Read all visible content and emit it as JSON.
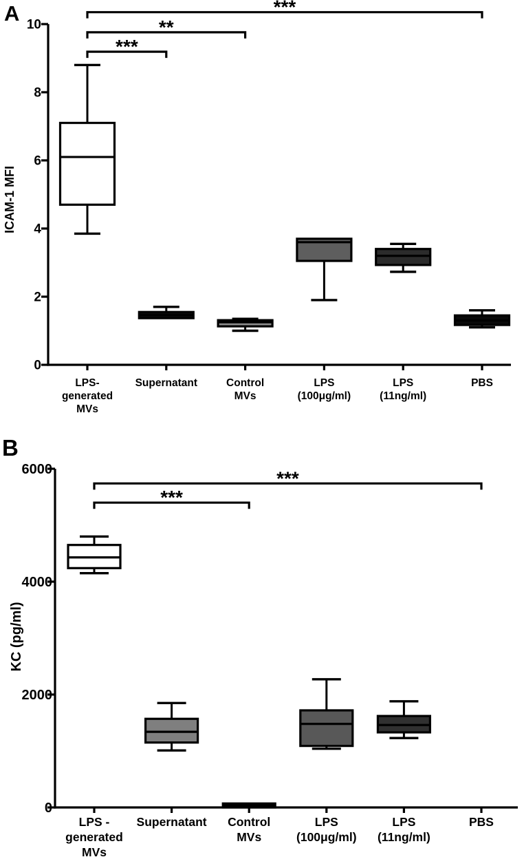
{
  "figure": {
    "background": "#ffffff",
    "ink": "#000000",
    "description": "Two-panel box plot figure"
  },
  "chart_data": [
    {
      "type": "box",
      "panel_label": "A",
      "ylabel": "ICAM-1 MFI",
      "xlabel": "",
      "ylim": [
        0,
        10
      ],
      "ytick_values": [
        0,
        2,
        4,
        6,
        8,
        10
      ],
      "ytick_labels": [
        "0",
        "2",
        "4",
        "6",
        "8",
        "10"
      ],
      "grid": false,
      "legend": false,
      "categories": [
        [
          "LPS-",
          "generated",
          "MVs"
        ],
        [
          "Supernatant"
        ],
        [
          "Control",
          "MVs"
        ],
        [
          "LPS",
          "(100μg/ml)"
        ],
        [
          "LPS",
          "(11ng/ml)"
        ],
        [
          "PBS"
        ]
      ],
      "series": [
        {
          "name": "LPS-generated MVs",
          "min": 3.85,
          "q1": 4.7,
          "median": 6.1,
          "q3": 7.1,
          "max": 8.8,
          "fill": "#ffffff"
        },
        {
          "name": "Supernatant",
          "min": 1.37,
          "q1": 1.37,
          "median": 1.46,
          "q3": 1.55,
          "max": 1.7,
          "fill": "#0a0a0a"
        },
        {
          "name": "Control MVs",
          "min": 1.0,
          "q1": 1.13,
          "median": 1.25,
          "q3": 1.31,
          "max": 1.35,
          "fill": "#8c8c8c"
        },
        {
          "name": "LPS (100μg/ml)",
          "min": 1.9,
          "q1": 3.05,
          "median": 3.6,
          "q3": 3.7,
          "max": 3.7,
          "fill": "#5e5e5e"
        },
        {
          "name": "LPS (11ng/ml)",
          "min": 2.73,
          "q1": 2.93,
          "median": 3.2,
          "q3": 3.4,
          "max": 3.55,
          "fill": "#2b2b2b"
        },
        {
          "name": "PBS",
          "min": 1.1,
          "q1": 1.17,
          "median": 1.3,
          "q3": 1.45,
          "max": 1.6,
          "fill": "#0a0a0a"
        }
      ],
      "significance": [
        {
          "from": 0,
          "to": 5,
          "label": "***",
          "y": 10.35
        },
        {
          "from": 0,
          "to": 2,
          "label": "**",
          "y": 9.76
        },
        {
          "from": 0,
          "to": 1,
          "label": "***",
          "y": 9.19
        }
      ]
    },
    {
      "type": "box",
      "panel_label": "B",
      "ylabel": "KC (pg/ml)",
      "xlabel": "",
      "ylim": [
        0,
        6000
      ],
      "ytick_values": [
        0,
        2000,
        4000,
        6000
      ],
      "ytick_labels": [
        "0",
        "2000",
        "4000",
        "6000"
      ],
      "grid": false,
      "legend": false,
      "categories": [
        [
          "LPS -",
          "generated",
          "MVs"
        ],
        [
          "Supernatant"
        ],
        [
          "Control",
          "MVs"
        ],
        [
          "LPS",
          "(100μg/ml)"
        ],
        [
          "LPS",
          "(11ng/ml)"
        ],
        [
          "PBS"
        ]
      ],
      "series": [
        {
          "name": "LPS - generated MVs",
          "min": 4150,
          "q1": 4240,
          "median": 4430,
          "q3": 4650,
          "max": 4800,
          "fill": "#ffffff"
        },
        {
          "name": "Supernatant",
          "min": 1010,
          "q1": 1150,
          "median": 1340,
          "q3": 1570,
          "max": 1850,
          "fill": "#7f7f7f"
        },
        {
          "name": "Control MVs",
          "min": 0,
          "q1": 0,
          "median": 30,
          "q3": 70,
          "max": 70,
          "fill": "#0d0d0d"
        },
        {
          "name": "LPS (100μg/ml)",
          "min": 1040,
          "q1": 1090,
          "median": 1480,
          "q3": 1720,
          "max": 2270,
          "fill": "#585858"
        },
        {
          "name": "LPS (11ng/ml)",
          "min": 1230,
          "q1": 1330,
          "median": 1460,
          "q3": 1620,
          "max": 1880,
          "fill": "#303030"
        },
        {
          "name": "PBS",
          "min": null,
          "q1": null,
          "median": null,
          "q3": null,
          "max": null,
          "fill": null
        }
      ],
      "significance": [
        {
          "from": 0,
          "to": 5,
          "label": "***",
          "y": 5740
        },
        {
          "from": 0,
          "to": 2,
          "label": "***",
          "y": 5400
        }
      ]
    }
  ]
}
